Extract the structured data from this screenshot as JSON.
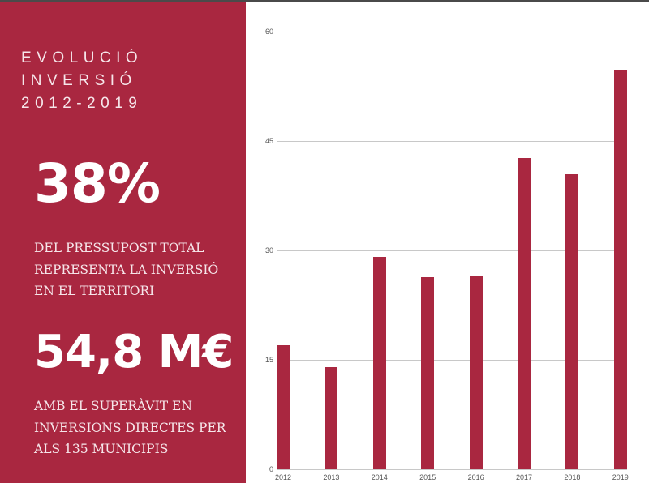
{
  "panel": {
    "title_lines": [
      "EVOLUCIÓ",
      "INVERSIÓ",
      "2012-2019"
    ],
    "stat1": {
      "value": "38%",
      "lines": [
        "DEL PRESSUPOST TOTAL",
        "REPRESENTA LA INVERSIÓ",
        "EN EL TERRITORI"
      ]
    },
    "stat2": {
      "value": "54,8 M€",
      "lines": [
        "AMB EL SUPERÀVIT EN",
        "INVERSIONS DIRECTES PER",
        "ALS 135 MUNICIPIS"
      ]
    },
    "colors": {
      "panel_bg": "#a92740",
      "text": "#ffffff"
    }
  },
  "chart_data": {
    "type": "bar",
    "title": "EVOLUCIÓ INVERSIÓ 2012-2019",
    "xlabel": "",
    "ylabel": "",
    "categories": [
      "2012",
      "2013",
      "2014",
      "2015",
      "2016",
      "2017",
      "2018",
      "2019"
    ],
    "values": [
      17.0,
      14.0,
      29.1,
      26.3,
      26.6,
      42.7,
      40.4,
      54.8
    ],
    "ylim": [
      0,
      60
    ],
    "yticks": [
      "0",
      "15",
      "30",
      "45",
      "60"
    ],
    "grid": true,
    "legend": null,
    "bar_color": "#a92740"
  }
}
